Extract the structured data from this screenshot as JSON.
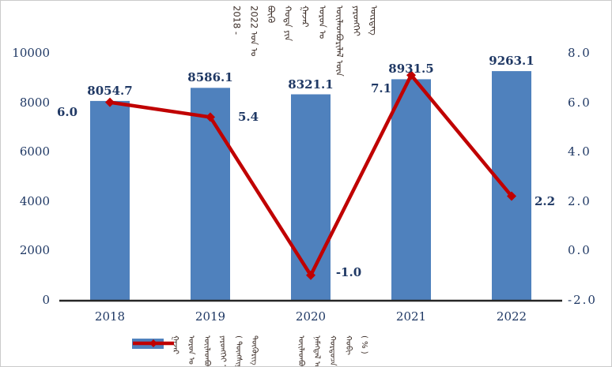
{
  "colors": {
    "bar": "#4F81BD",
    "line": "#C00000",
    "number_text": "#1F3864",
    "mongol_text": "#3C2E28",
    "axis_line": "#262626",
    "canvas_border": "#CBCBCB",
    "background": "#FFFFFF"
  },
  "title": {
    "segments": [
      "2018 -",
      "2022 ᠣᠨ ᠤ",
      "ᠪᠦᠬᠦ",
      "ᠬᠣᠲᠠ ᠶᠢᠨ",
      "ᠭᠠᠵᠠᠷ",
      "ᠣᠷᠣᠨ ᠤ",
      "ᠦᠢᠯᠡᠳᠪᠦᠷᠢᠯᠡᠯ ᠦᠨ",
      "ᠶᠡᠷᠦᠩᠬᠡᠢ",
      "ᠥᠷᠲᠡᠭ"
    ]
  },
  "legend": {
    "items": [
      {
        "swatch": "bar-swatch",
        "segments": [
          "ᠭᠠᠵᠠᠷ",
          "ᠣᠷᠣᠨ ᠤ",
          "ᠦᠢᠯᠡᠳᠪᠦᠷᠢᠯᠡᠯ ᠦᠨ",
          "ᠶᠡᠷᠦᠩᠬᠡᠢ ᠥᠷᠲᠡᠭ",
          "( ᠳᠦᠩᠰᠢᠭᠤᠷ",
          "ᠲᠥᠭᠥᠷᠢᠭ )"
        ]
      },
      {
        "swatch": "line-swatch",
        "segments": [
          "ᠦᠢᠯᠡᠳᠪᠦᠷᠢᠯᠡᠯ ᠦᠨ",
          "ᠨᠡᠮᠡᠭᠳᠡᠯ ᠦᠨ",
          "ᠬᠤᠷᠳᠤᠴᠠ",
          "ᠬᠤᠪᠢ",
          "( % )"
        ]
      }
    ]
  },
  "chart_data": {
    "type": "bar+line",
    "title": "2018 - 2022 ᠣᠨ ᠤ ᠪᠦᠬᠦ ᠬᠣᠲᠠ ᠶᠢᠨ ᠭᠠᠵᠠᠷ ᠣᠷᠣᠨ ᠤ ᠦᠢᠯᠡᠳᠪᠦᠷᠢᠯᠡᠯ ᠦᠨ ᠶᠡᠷᠦᠩᠬᠡᠢ ᠥᠷᠲᠡᠭ",
    "categories": [
      "2018",
      "2019",
      "2020",
      "2021",
      "2022"
    ],
    "series": [
      {
        "name": "ᠭᠠᠵᠠᠷ ᠣᠷᠣᠨ ᠤ ᠦᠢᠯᠡᠳᠪᠦᠷᠢᠯᠡᠯ ᠦᠨ ᠶᠡᠷᠦᠩᠬᠡᠢ ᠥᠷᠲᠡᠭ ( ᠳᠦᠩᠰᠢᠭᠤᠷ ᠲᠥᠭᠥᠷᠢᠭ )",
        "type": "bar",
        "axis": "left",
        "values": [
          8054.7,
          8586.1,
          8321.1,
          8931.5,
          9263.1
        ],
        "labels": [
          "8054.7",
          "8586.1",
          "8321.1",
          "8931.5",
          "9263.1"
        ],
        "color": "#4F81BD"
      },
      {
        "name": "ᠦᠢᠯᠡᠳᠪᠦᠷᠢᠯᠡᠯ ᠦᠨ ᠨᠡᠮᠡᠭᠳᠡᠯ ᠦᠨ ᠬᠤᠷᠳᠤᠴᠠ ( % )",
        "type": "line",
        "axis": "right",
        "values": [
          6.0,
          5.4,
          -1.0,
          7.1,
          2.2
        ],
        "labels": [
          "6.0",
          "5.4",
          "-1.0",
          "7.1",
          "2.2"
        ],
        "color": "#C00000"
      }
    ],
    "left_axis": {
      "min": 0,
      "max": 10000,
      "ticks": [
        "0",
        "2000",
        "4000",
        "6000",
        "8000",
        "10000"
      ]
    },
    "right_axis": {
      "min": -2,
      "max": 8,
      "ticks": [
        "-2.0",
        "0.0",
        "2.0",
        "4.0",
        "6.0",
        "8.0"
      ]
    },
    "grid": false,
    "legend_position": "bottom"
  }
}
